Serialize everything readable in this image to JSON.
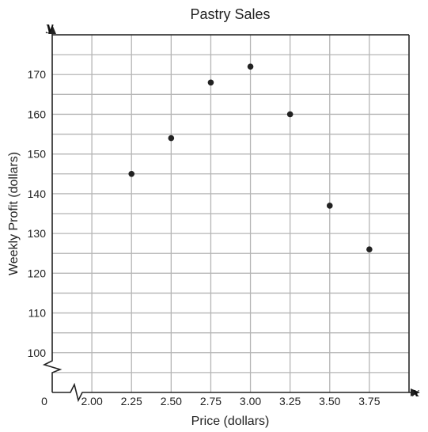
{
  "chart_data": {
    "type": "scatter",
    "title": "Pastry Sales",
    "xlabel": "Price (dollars)",
    "ylabel": "Weekly Profit (dollars)",
    "x_axis_letter": "x",
    "y_axis_letter": "y",
    "origin_label": "0",
    "xlim": [
      1.75,
      4.0
    ],
    "ylim": [
      90,
      180
    ],
    "x_ticks": [
      2.0,
      2.25,
      2.5,
      2.75,
      3.0,
      3.25,
      3.5,
      3.75
    ],
    "x_tick_labels": [
      "2.00",
      "2.25",
      "2.50",
      "2.75",
      "3.00",
      "3.25",
      "3.50",
      "3.75"
    ],
    "y_ticks": [
      100,
      110,
      120,
      130,
      140,
      150,
      160,
      170
    ],
    "y_tick_labels": [
      "100",
      "110",
      "120",
      "130",
      "140",
      "150",
      "160",
      "170"
    ],
    "grid": true,
    "axis_breaks": true,
    "points": [
      {
        "x": 2.25,
        "y": 145
      },
      {
        "x": 2.5,
        "y": 154
      },
      {
        "x": 2.75,
        "y": 168
      },
      {
        "x": 3.0,
        "y": 172
      },
      {
        "x": 3.25,
        "y": 160
      },
      {
        "x": 3.5,
        "y": 137
      },
      {
        "x": 3.75,
        "y": 126
      }
    ],
    "colors": {
      "grid": "#b5b5b5",
      "axis": "#222222",
      "point": "#222222"
    }
  }
}
